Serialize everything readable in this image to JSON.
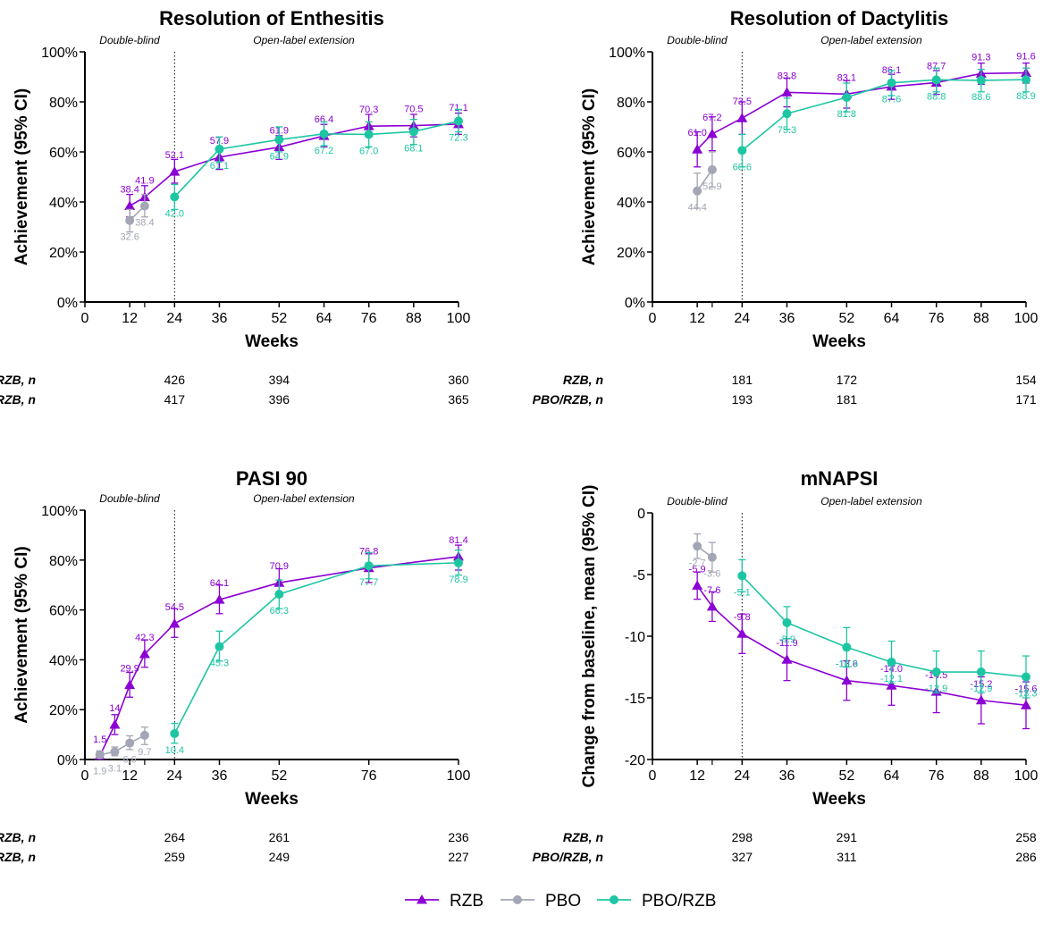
{
  "colors": {
    "RZB": "#8B00D4",
    "PBO": "#A3A6B4",
    "PBO/RZB": "#1DC6A3",
    "axis": "#000000"
  },
  "legend": {
    "items": [
      "RZB",
      "PBO",
      "PBO/RZB"
    ]
  },
  "n_table": {
    "row_labels": [
      "RZB, n",
      "PBO/RZB, n"
    ]
  },
  "chart_data": [
    {
      "type": "line",
      "title": "Resolution of Enthesitis",
      "xlabel": "Weeks",
      "ylabel": "Achievement (95% CI)",
      "xlim": [
        0,
        100
      ],
      "ylim": [
        0,
        100
      ],
      "xticks": [
        0,
        12,
        24,
        36,
        52,
        64,
        76,
        88,
        100
      ],
      "yticks": [
        0,
        20,
        40,
        60,
        80,
        100
      ],
      "ytick_labels": [
        "0%",
        "20%",
        "40%",
        "60%",
        "80%",
        "100%"
      ],
      "period_labels": [
        "Double-blind",
        "Open-label extension"
      ],
      "divider_week": 24,
      "series": [
        {
          "name": "RZB",
          "x": [
            12,
            16,
            24,
            36,
            52,
            64,
            76,
            88,
            100
          ],
          "values": [
            38.4,
            41.9,
            52.1,
            57.9,
            61.9,
            66.4,
            70.3,
            70.5,
            71.1
          ],
          "labels": [
            "38.4",
            "41.9",
            "52.1",
            "57.9",
            "61.9",
            "66.4",
            "70.3",
            "70.5",
            "71.1"
          ],
          "ci": [
            [
              34,
              43
            ],
            [
              37.5,
              46.5
            ],
            [
              47.5,
              57
            ],
            [
              53,
              62
            ],
            [
              57,
              66.5
            ],
            [
              62,
              71
            ],
            [
              66,
              75
            ],
            [
              66,
              75
            ],
            [
              67,
              75.5
            ]
          ]
        },
        {
          "name": "PBO",
          "x": [
            12,
            16
          ],
          "values": [
            32.6,
            38.4
          ],
          "labels": [
            "32.6",
            "38.4"
          ],
          "ci": [
            [
              28,
              37
            ],
            [
              34,
              43
            ]
          ]
        },
        {
          "name": "PBO/RZB",
          "x": [
            24,
            36,
            52,
            64,
            76,
            88,
            100
          ],
          "values": [
            42.0,
            61.1,
            64.9,
            67.2,
            67.0,
            68.1,
            72.3
          ],
          "labels": [
            "42.0",
            "61.1",
            "64.9",
            "67.2",
            "67.0",
            "68.1",
            "72.3"
          ],
          "ci": [
            [
              37,
              47
            ],
            [
              56,
              66
            ],
            [
              60,
              70
            ],
            [
              62.5,
              72
            ],
            [
              62,
              72
            ],
            [
              63,
              73
            ],
            [
              68,
              77
            ]
          ]
        }
      ],
      "n_counts": {
        "weeks": [
          24,
          52,
          100
        ],
        "RZB": [
          "426",
          "394",
          "360"
        ],
        "PBO/RZB": [
          "417",
          "396",
          "365"
        ]
      }
    },
    {
      "type": "line",
      "title": "Resolution of Dactylitis",
      "xlabel": "Weeks",
      "ylabel": "Achievement (95% CI)",
      "xlim": [
        0,
        100
      ],
      "ylim": [
        0,
        100
      ],
      "xticks": [
        0,
        12,
        24,
        36,
        52,
        64,
        76,
        88,
        100
      ],
      "yticks": [
        0,
        20,
        40,
        60,
        80,
        100
      ],
      "ytick_labels": [
        "0%",
        "20%",
        "40%",
        "60%",
        "80%",
        "100%"
      ],
      "period_labels": [
        "Double-blind",
        "Open-label extension"
      ],
      "divider_week": 24,
      "series": [
        {
          "name": "RZB",
          "x": [
            12,
            16,
            24,
            36,
            52,
            64,
            76,
            88,
            100
          ],
          "values": [
            61.0,
            67.2,
            73.5,
            83.8,
            83.1,
            86.1,
            87.7,
            91.3,
            91.6
          ],
          "labels": [
            "61.0",
            "67.2",
            "73.5",
            "83.8",
            "83.1",
            "86.1",
            "87.7",
            "91.3",
            "91.6"
          ],
          "ci": [
            [
              54,
              68
            ],
            [
              60.5,
              74
            ],
            [
              67,
              80
            ],
            [
              78,
              89.5
            ],
            [
              77.5,
              88.5
            ],
            [
              81,
              91
            ],
            [
              83,
              92.5
            ],
            [
              87,
              95.5
            ],
            [
              87.5,
              95.5
            ]
          ]
        },
        {
          "name": "PBO",
          "x": [
            12,
            16
          ],
          "values": [
            44.4,
            52.9
          ],
          "labels": [
            "44.4",
            "52.9"
          ],
          "ci": [
            [
              37.5,
              51.5
            ],
            [
              46,
              60
            ]
          ]
        },
        {
          "name": "PBO/RZB",
          "x": [
            24,
            36,
            52,
            64,
            76,
            88,
            100
          ],
          "values": [
            60.6,
            75.3,
            81.8,
            87.6,
            88.8,
            88.6,
            88.9
          ],
          "labels": [
            "60.6",
            "75.3",
            "81.8",
            "87.6",
            "88.8",
            "88.6",
            "88.9"
          ],
          "ci": [
            [
              54,
              67
            ],
            [
              69,
              81.5
            ],
            [
              76,
              87.5
            ],
            [
              82.5,
              92.5
            ],
            [
              84,
              93.5
            ],
            [
              84,
              93
            ],
            [
              84,
              93.5
            ]
          ]
        }
      ],
      "n_counts": {
        "weeks": [
          24,
          52,
          100
        ],
        "RZB": [
          "181",
          "172",
          "154"
        ],
        "PBO/RZB": [
          "193",
          "181",
          "171"
        ]
      }
    },
    {
      "type": "line",
      "title": "PASI 90",
      "xlabel": "Weeks",
      "ylabel": "Achievement (95% CI)",
      "xlim": [
        0,
        100
      ],
      "ylim": [
        0,
        100
      ],
      "xticks": [
        0,
        12,
        24,
        36,
        52,
        76,
        100
      ],
      "yticks": [
        0,
        20,
        40,
        60,
        80,
        100
      ],
      "ytick_labels": [
        "0%",
        "20%",
        "40%",
        "60%",
        "80%",
        "100%"
      ],
      "period_labels": [
        "Double-blind",
        "Open-label extension"
      ],
      "divider_week": 24,
      "series": [
        {
          "name": "RZB",
          "x": [
            4,
            8,
            12,
            16,
            24,
            36,
            52,
            76,
            100
          ],
          "values": [
            1.5,
            14,
            29.9,
            42.3,
            54.5,
            64.1,
            70.9,
            76.8,
            81.4
          ],
          "labels": [
            "1.5",
            "14",
            "29.9",
            "42.3",
            "54.5",
            "64.1",
            "70.9",
            "76.8",
            "81.4"
          ],
          "ci": [
            [
              0.5,
              3
            ],
            [
              10,
              18
            ],
            [
              25,
              35
            ],
            [
              37,
              48
            ],
            [
              49,
              60.5
            ],
            [
              58.5,
              70
            ],
            [
              65.5,
              76.5
            ],
            [
              71,
              82.5
            ],
            [
              76,
              86
            ]
          ]
        },
        {
          "name": "PBO",
          "x": [
            4,
            8,
            12,
            16
          ],
          "values": [
            1.9,
            3.1,
            6.6,
            9.7
          ],
          "labels": [
            "1.9",
            "3.1",
            "6.6",
            "9.7"
          ],
          "ci": [
            [
              0.5,
              3.5
            ],
            [
              1.5,
              5
            ],
            [
              4,
              9.5
            ],
            [
              6,
              13
            ]
          ]
        },
        {
          "name": "PBO/RZB",
          "x": [
            24,
            36,
            52,
            76,
            100
          ],
          "values": [
            10.4,
            45.3,
            66.3,
            77.7,
            78.9
          ],
          "labels": [
            "10.4",
            "45.3",
            "66.3",
            "77.7",
            "78.9"
          ],
          "ci": [
            [
              6.5,
              14.5
            ],
            [
              39.5,
              51.5
            ],
            [
              60.5,
              72
            ],
            [
              72.5,
              83
            ],
            [
              74,
              84
            ]
          ]
        }
      ],
      "n_counts": {
        "weeks": [
          24,
          52,
          100
        ],
        "RZB": [
          "264",
          "261",
          "236"
        ],
        "PBO/RZB": [
          "259",
          "249",
          "227"
        ]
      }
    },
    {
      "type": "line",
      "title": "mNAPSI",
      "xlabel": "Weeks",
      "ylabel": "Change from baseline, mean  (95%  CI)",
      "xlim": [
        0,
        100
      ],
      "ylim": [
        -20,
        0
      ],
      "xticks": [
        0,
        12,
        24,
        36,
        52,
        64,
        76,
        88,
        100
      ],
      "yticks": [
        0,
        -5,
        -10,
        -15,
        -20
      ],
      "ytick_labels": [
        "0",
        "-5",
        "-10",
        "-15",
        "-20"
      ],
      "period_labels": [
        "Double-blind",
        "Open-label extension"
      ],
      "divider_week": 24,
      "series": [
        {
          "name": "RZB",
          "x": [
            12,
            16,
            24,
            36,
            52,
            64,
            76,
            88,
            100
          ],
          "values": [
            -5.9,
            -7.6,
            -9.8,
            -11.9,
            -13.6,
            -14.0,
            -14.5,
            -15.2,
            -15.6
          ],
          "labels": [
            "-5.9",
            "-7.6",
            "-9.8",
            "-11.9",
            "-13.6",
            "-14.0",
            "-14.5",
            "-15.2",
            "-15.6"
          ],
          "ci": [
            [
              -7,
              -4.8
            ],
            [
              -8.8,
              -6.4
            ],
            [
              -11.4,
              -8.2
            ],
            [
              -13.6,
              -10.2
            ],
            [
              -15.2,
              -12
            ],
            [
              -15.6,
              -12.4
            ],
            [
              -16.2,
              -12.8
            ],
            [
              -17.1,
              -13.3
            ],
            [
              -17.5,
              -13.7
            ]
          ]
        },
        {
          "name": "PBO",
          "x": [
            12,
            16
          ],
          "values": [
            -2.7,
            -3.6
          ],
          "labels": [
            "-2.7",
            "-3.6"
          ],
          "ci": [
            [
              -3.7,
              -1.7
            ],
            [
              -4.8,
              -2.4
            ]
          ]
        },
        {
          "name": "PBO/RZB",
          "x": [
            24,
            36,
            52,
            64,
            76,
            88,
            100
          ],
          "values": [
            -5.1,
            -8.9,
            -10.9,
            -12.1,
            -12.9,
            -12.9,
            -13.3
          ],
          "labels": [
            "-5.1",
            "-8.9",
            "-10.9",
            "-12.1",
            "-12.9",
            "-12.9",
            "-13.3"
          ],
          "ci": [
            [
              -6.4,
              -3.8
            ],
            [
              -10.2,
              -7.6
            ],
            [
              -12.5,
              -9.3
            ],
            [
              -13.8,
              -10.4
            ],
            [
              -14.6,
              -11.2
            ],
            [
              -14.6,
              -11.2
            ],
            [
              -15,
              -11.6
            ]
          ]
        }
      ],
      "n_counts": {
        "weeks": [
          24,
          52,
          100
        ],
        "RZB": [
          "298",
          "291",
          "258"
        ],
        "PBO/RZB": [
          "327",
          "311",
          "286"
        ]
      }
    }
  ]
}
